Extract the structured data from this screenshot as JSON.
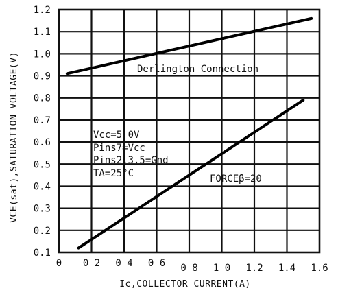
{
  "chart_data": {
    "type": "line",
    "xlabel": "Ic,COLLECTOR CURRENT(A)",
    "ylabel": "VCE(sat),SATURATION VOLTAGE(V)",
    "xlim": [
      0,
      1.6
    ],
    "ylim": [
      0.1,
      1.2
    ],
    "x_ticks": [
      0,
      0.2,
      0.4,
      0.6,
      0.8,
      1.0,
      1.2,
      1.4,
      1.6
    ],
    "x_tick_labels": [
      "0",
      "0 2",
      "0 4",
      "0 6",
      "0 8",
      "1 0",
      "1.2",
      "1.4",
      "1.6"
    ],
    "x_tick_label_row1": [
      "0",
      "0 2",
      "0 4",
      "0 6"
    ],
    "x_tick_label_row2": [
      "0 8",
      "1 0",
      "1.2",
      "1.4",
      "1.6"
    ],
    "y_ticks": [
      0.1,
      0.2,
      0.3,
      0.4,
      0.5,
      0.6,
      0.7,
      0.8,
      0.9,
      1.0,
      1.1,
      1.2
    ],
    "y_tick_labels": [
      "0.1",
      "0.2",
      "0.3",
      "0.4",
      "0.5",
      "0.6",
      "0.7",
      "0.8",
      "0.9",
      "1.0",
      "1.1",
      "1.2"
    ],
    "grid": true,
    "series": [
      {
        "name": "Derlington Connection",
        "x": [
          0.05,
          1.55
        ],
        "y": [
          0.91,
          1.16
        ]
      },
      {
        "name": "FORCEβ=20",
        "x": [
          0.12,
          1.5
        ],
        "y": [
          0.12,
          0.79
        ]
      }
    ],
    "annotations": {
      "conditions": [
        "Vcc=5 0V",
        "Pins7=Vcc",
        "Pins2,3.5=Gnd",
        "TA=25°C"
      ]
    }
  }
}
